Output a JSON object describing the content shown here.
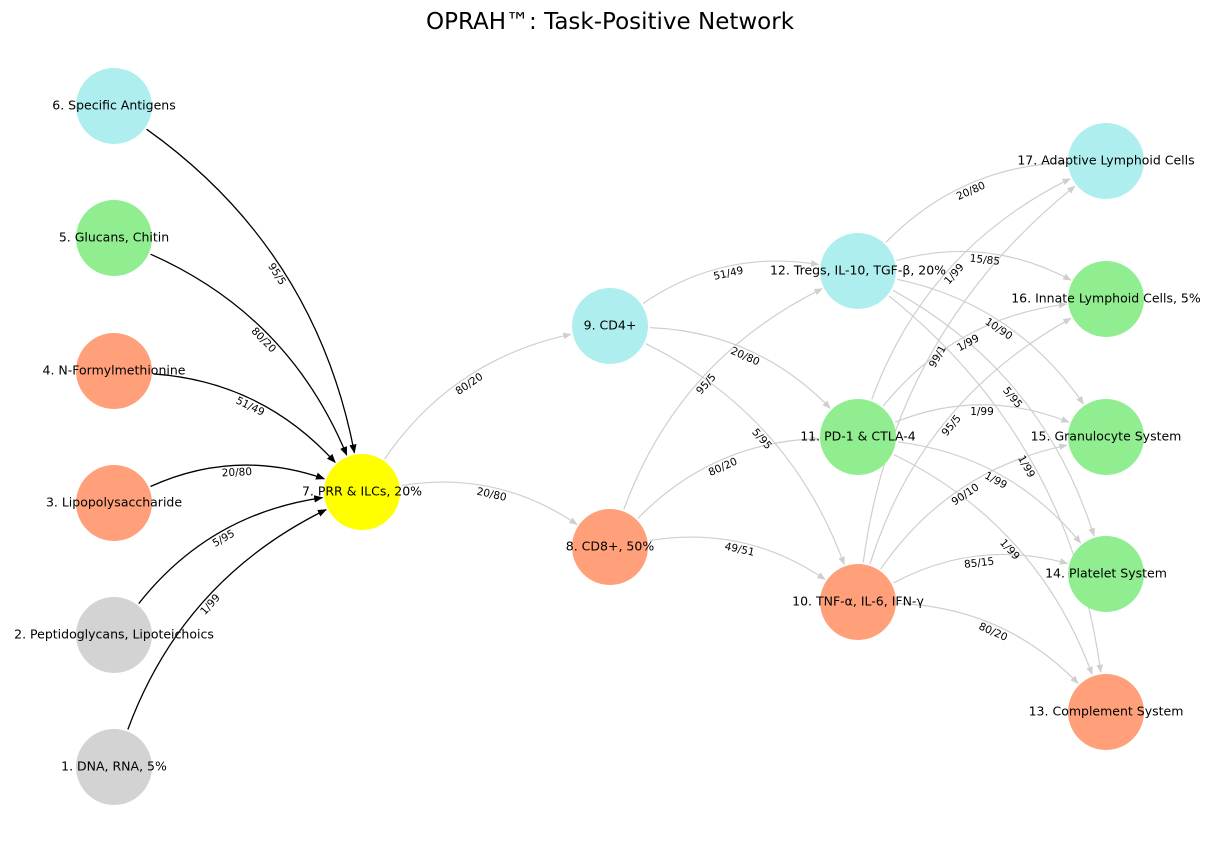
{
  "title": "OPRAH™: Task-Positive Network",
  "colors": {
    "grey": "#d3d3d3",
    "green": "#90ee90",
    "salmon": "#ffa07a",
    "cyan": "#afeeee",
    "yellow": "#ffff00",
    "edge_input": "#000000",
    "edge_network": "#d3d3d3"
  },
  "nodes": [
    {
      "id": "n1",
      "label": "1. DNA, RNA,  5%",
      "color": "grey"
    },
    {
      "id": "n2",
      "label": "2. Peptidoglycans, Lipoteichoics",
      "color": "grey"
    },
    {
      "id": "n3",
      "label": "3. Lipopolysaccharide",
      "color": "salmon"
    },
    {
      "id": "n4",
      "label": "4. N-Formylmethionine",
      "color": "salmon"
    },
    {
      "id": "n5",
      "label": "5. Glucans, Chitin",
      "color": "green"
    },
    {
      "id": "n6",
      "label": "6. Specific Antigens",
      "color": "cyan"
    },
    {
      "id": "n7",
      "label": "7. PRR & ILCs, 20%",
      "color": "yellow"
    },
    {
      "id": "n8",
      "label": "8. CD8+, 50%",
      "color": "salmon"
    },
    {
      "id": "n9",
      "label": "9. CD4+",
      "color": "cyan"
    },
    {
      "id": "n10",
      "label": "10. TNF-α, IL-6, IFN-γ",
      "color": "salmon"
    },
    {
      "id": "n11",
      "label": "11. PD-1 & CTLA-4",
      "color": "green"
    },
    {
      "id": "n12",
      "label": "12. Tregs, IL-10, TGF-β, 20%",
      "color": "cyan"
    },
    {
      "id": "n13",
      "label": "13. Complement System",
      "color": "salmon"
    },
    {
      "id": "n14",
      "label": "14. Platelet System",
      "color": "green"
    },
    {
      "id": "n15",
      "label": "15. Granulocyte System",
      "color": "green"
    },
    {
      "id": "n16",
      "label": "16. Innate Lymphoid Cells, 5%",
      "color": "green"
    },
    {
      "id": "n17",
      "label": "17. Adaptive Lymphoid Cells",
      "color": "cyan"
    }
  ],
  "edges": [
    {
      "from": "n1",
      "to": "n7",
      "label": "1/99",
      "style": "dark"
    },
    {
      "from": "n2",
      "to": "n7",
      "label": "5/95",
      "style": "dark"
    },
    {
      "from": "n3",
      "to": "n7",
      "label": "20/80",
      "style": "dark"
    },
    {
      "from": "n4",
      "to": "n7",
      "label": "51/49",
      "style": "dark"
    },
    {
      "from": "n5",
      "to": "n7",
      "label": "80/20",
      "style": "dark"
    },
    {
      "from": "n6",
      "to": "n7",
      "label": "95/5",
      "style": "dark"
    },
    {
      "from": "n7",
      "to": "n8",
      "label": "20/80",
      "style": "light"
    },
    {
      "from": "n7",
      "to": "n9",
      "label": "80/20",
      "style": "light"
    },
    {
      "from": "n8",
      "to": "n10",
      "label": "49/51",
      "style": "light"
    },
    {
      "from": "n8",
      "to": "n11",
      "label": "80/20",
      "style": "light"
    },
    {
      "from": "n8",
      "to": "n12",
      "label": "95/5",
      "style": "light"
    },
    {
      "from": "n9",
      "to": "n10",
      "label": "5/95",
      "style": "light"
    },
    {
      "from": "n9",
      "to": "n11",
      "label": "20/80",
      "style": "light"
    },
    {
      "from": "n9",
      "to": "n12",
      "label": "51/49",
      "style": "light"
    },
    {
      "from": "n10",
      "to": "n13",
      "label": "80/20",
      "style": "light"
    },
    {
      "from": "n10",
      "to": "n14",
      "label": "85/15",
      "style": "light"
    },
    {
      "from": "n10",
      "to": "n15",
      "label": "90/10",
      "style": "light"
    },
    {
      "from": "n10",
      "to": "n16",
      "label": "95/5",
      "style": "light"
    },
    {
      "from": "n10",
      "to": "n17",
      "label": "99/1",
      "style": "light"
    },
    {
      "from": "n11",
      "to": "n13",
      "label": "1/99",
      "style": "light"
    },
    {
      "from": "n11",
      "to": "n14",
      "label": "1/99",
      "style": "light"
    },
    {
      "from": "n11",
      "to": "n15",
      "label": "1/99",
      "style": "light"
    },
    {
      "from": "n11",
      "to": "n16",
      "label": "1/99",
      "style": "light"
    },
    {
      "from": "n11",
      "to": "n17",
      "label": "1/99",
      "style": "light"
    },
    {
      "from": "n12",
      "to": "n13",
      "label": "1/99",
      "style": "light"
    },
    {
      "from": "n12",
      "to": "n14",
      "label": "5/95",
      "style": "light"
    },
    {
      "from": "n12",
      "to": "n15",
      "label": "10/90",
      "style": "light"
    },
    {
      "from": "n12",
      "to": "n16",
      "label": "15/85",
      "style": "light"
    },
    {
      "from": "n12",
      "to": "n17",
      "label": "20/80",
      "style": "light"
    }
  ]
}
